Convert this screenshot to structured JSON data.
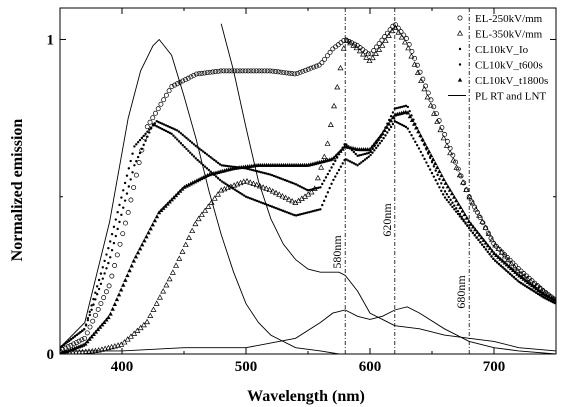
{
  "chart_data": {
    "type": "line",
    "title": "",
    "xlabel": "Wavelength (nm)",
    "ylabel": "Normalized emission",
    "xlim": [
      350,
      750
    ],
    "ylim": [
      0,
      1.1
    ],
    "x_ticks": [
      {
        "value": 400,
        "label": "400"
      },
      {
        "value": 500,
        "label": "500"
      },
      {
        "value": 600,
        "label": "600"
      },
      {
        "value": 700,
        "label": "700"
      }
    ],
    "y_ticks": [
      {
        "value": 0,
        "label": "0"
      },
      {
        "value": 1,
        "label": "1"
      }
    ],
    "grid": false,
    "legend_position": "top-right",
    "vertical_markers": [
      {
        "x": 580,
        "label": "580nm"
      },
      {
        "x": 620,
        "label": "620nm"
      },
      {
        "x": 680,
        "label": "680nm"
      }
    ],
    "series": [
      {
        "name": "EL-250kV/mm",
        "marker": "circle",
        "x": [
          350,
          370,
          390,
          405,
          420,
          440,
          460,
          480,
          500,
          520,
          540,
          560,
          570,
          580,
          590,
          600,
          610,
          620,
          630,
          640,
          660,
          680,
          700,
          720,
          740,
          750
        ],
        "y": [
          0.01,
          0.05,
          0.22,
          0.45,
          0.72,
          0.85,
          0.89,
          0.9,
          0.9,
          0.9,
          0.89,
          0.92,
          0.97,
          1.0,
          0.98,
          0.95,
          1.0,
          1.05,
          1.0,
          0.9,
          0.7,
          0.5,
          0.35,
          0.27,
          0.2,
          0.17
        ]
      },
      {
        "name": "EL-350kV/mm",
        "marker": "triangle",
        "x": [
          350,
          380,
          400,
          420,
          440,
          460,
          480,
          500,
          520,
          540,
          555,
          565,
          575,
          580,
          590,
          600,
          610,
          620,
          630,
          640,
          660,
          680,
          700,
          720,
          740,
          750
        ],
        "y": [
          0.0,
          0.01,
          0.03,
          0.1,
          0.25,
          0.42,
          0.52,
          0.55,
          0.52,
          0.48,
          0.52,
          0.65,
          0.88,
          1.0,
          0.97,
          0.93,
          0.98,
          1.04,
          0.98,
          0.88,
          0.68,
          0.5,
          0.35,
          0.26,
          0.2,
          0.17
        ]
      },
      {
        "name": "CL10kV_Io",
        "marker": "dot",
        "x": [
          350,
          370,
          390,
          410,
          425,
          440,
          460,
          480,
          500,
          520,
          540,
          560,
          570,
          580,
          590,
          600,
          610,
          620,
          630,
          640,
          660,
          680,
          700,
          720,
          740,
          750
        ],
        "y": [
          0.02,
          0.08,
          0.3,
          0.6,
          0.73,
          0.7,
          0.62,
          0.55,
          0.5,
          0.47,
          0.44,
          0.46,
          0.55,
          0.62,
          0.6,
          0.63,
          0.68,
          0.74,
          0.72,
          0.65,
          0.5,
          0.4,
          0.3,
          0.23,
          0.18,
          0.16
        ]
      },
      {
        "name": "CL10kV_t600s",
        "marker": "dot",
        "x": [
          350,
          370,
          390,
          410,
          428,
          445,
          460,
          480,
          500,
          520,
          540,
          550,
          560,
          570,
          580,
          590,
          600,
          610,
          620,
          630,
          640,
          660,
          680,
          700,
          720,
          740,
          750
        ],
        "y": [
          0.02,
          0.08,
          0.35,
          0.66,
          0.74,
          0.71,
          0.66,
          0.6,
          0.59,
          0.57,
          0.54,
          0.52,
          0.53,
          0.6,
          0.67,
          0.63,
          0.64,
          0.7,
          0.78,
          0.79,
          0.7,
          0.52,
          0.4,
          0.3,
          0.23,
          0.18,
          0.16
        ]
      },
      {
        "name": "CL10kV_t1800s",
        "marker": "triangle-filled",
        "x": [
          350,
          370,
          390,
          410,
          430,
          450,
          470,
          490,
          510,
          530,
          550,
          570,
          580,
          590,
          600,
          610,
          620,
          630,
          640,
          660,
          680,
          700,
          720,
          740,
          750
        ],
        "y": [
          0.0,
          0.03,
          0.12,
          0.3,
          0.45,
          0.53,
          0.57,
          0.59,
          0.6,
          0.6,
          0.6,
          0.62,
          0.66,
          0.65,
          0.65,
          0.7,
          0.76,
          0.77,
          0.7,
          0.55,
          0.42,
          0.32,
          0.25,
          0.19,
          0.17
        ]
      },
      {
        "name": "PL RT and LNT",
        "marker": "none",
        "x": [
          350,
          370,
          390,
          405,
          415,
          425,
          430,
          440,
          450,
          460,
          470,
          480,
          490,
          500,
          510,
          520,
          540,
          560,
          575,
          580,
          590,
          600,
          610,
          620,
          630,
          640,
          660,
          680,
          700,
          720,
          750
        ],
        "y": [
          0.02,
          0.1,
          0.42,
          0.75,
          0.9,
          0.98,
          1.0,
          0.95,
          0.82,
          0.68,
          0.52,
          0.38,
          0.26,
          0.16,
          0.1,
          0.06,
          0.02,
          0.01,
          0.0,
          0.0,
          0.0,
          0.0,
          0.0,
          0.0,
          0.0,
          0.0,
          0.0,
          0.0,
          0.0,
          0.0,
          0.0
        ]
      },
      {
        "name": "",
        "marker": "none",
        "x": [
          480,
          490,
          500,
          510,
          520,
          530,
          540,
          550,
          560,
          570,
          575,
          580,
          590,
          600,
          620,
          640,
          660,
          680,
          700,
          720,
          750
        ],
        "y": [
          1.05,
          0.9,
          0.72,
          0.55,
          0.43,
          0.35,
          0.3,
          0.27,
          0.26,
          0.26,
          0.26,
          0.25,
          0.2,
          0.13,
          0.09,
          0.08,
          0.06,
          0.05,
          0.04,
          0.02,
          0.01
        ]
      },
      {
        "name": "",
        "marker": "none",
        "x": [
          350,
          400,
          450,
          500,
          540,
          560,
          570,
          580,
          590,
          600,
          610,
          620,
          630,
          640,
          660,
          680,
          700,
          720,
          750
        ],
        "y": [
          0.01,
          0.01,
          0.02,
          0.02,
          0.05,
          0.1,
          0.13,
          0.14,
          0.12,
          0.11,
          0.12,
          0.14,
          0.15,
          0.13,
          0.08,
          0.04,
          0.02,
          0.01,
          0.0
        ]
      }
    ]
  }
}
